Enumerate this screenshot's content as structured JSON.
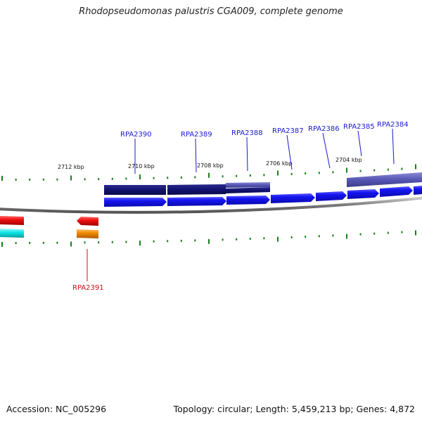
{
  "header": {
    "title": "Rhodopseudomonas palustris CGA009, complete genome"
  },
  "footer": {
    "accession": "Accession: NC_005296",
    "topology": "Topology: circular; Length: 5,459,213 bp; Genes: 4,872"
  },
  "ticks": {
    "labels": [
      "2712 kbp",
      "2710 kbp",
      "2708 kbp",
      "2706 kbp",
      "2704 kbp"
    ],
    "tick_color": "#1a7f1a"
  },
  "genes_top": [
    {
      "name": "RPA2390",
      "color": "#1a1acc"
    },
    {
      "name": "RPA2389",
      "color": "#1a1acc"
    },
    {
      "name": "RPA2388",
      "color": "#1a1acc"
    },
    {
      "name": "RPA2387",
      "color": "#1a1acc"
    },
    {
      "name": "RPA2386",
      "color": "#1a1acc"
    },
    {
      "name": "RPA2385",
      "color": "#1a1acc"
    },
    {
      "name": "RPA2384",
      "color": "#1a1acc"
    }
  ],
  "genes_bottom": [
    {
      "name": "RPA2391",
      "color": "#cc1111"
    }
  ],
  "colors": {
    "cds_forward": "#1010e8",
    "cds_dark": "#12126e",
    "cds_purple": "#4a4aa8",
    "cds_reverse": "#ee1111",
    "rna_cyan": "#10e8e8",
    "rna_orange": "#f08a00",
    "backbone": "#888888"
  }
}
